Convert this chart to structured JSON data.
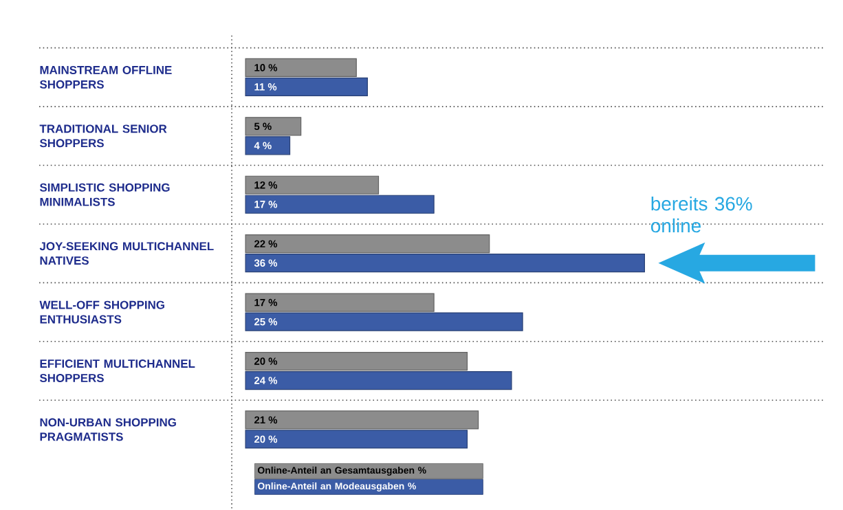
{
  "chart_data": {
    "type": "bar",
    "orientation": "horizontal",
    "categories": [
      "MAINSTREAM OFFLINE SHOPPERS",
      "TRADITIONAL SENIOR SHOPPERS",
      "SIMPLISTIC SHOPPING MINIMALISTS",
      "JOY-SEEKING MULTICHANNEL NATIVES",
      "WELL-OFF SHOPPING ENTHUSIASTS",
      "EFFICIENT MULTICHANNEL SHOPPERS",
      "NON-URBAN SHOPPING PRAGMATISTS"
    ],
    "series": [
      {
        "name": "Online-Anteil an Gesamtausgaben %",
        "color": "#8c8c8c",
        "values": [
          10,
          5,
          12,
          22,
          17,
          20,
          21
        ],
        "value_labels": [
          "10 %",
          "5 %",
          "12 %",
          "22 %",
          "17 %",
          "20 %",
          "21 %"
        ]
      },
      {
        "name": "Online-Anteil an Modeausgaben %",
        "color": "#3b5ca6",
        "values": [
          11,
          4,
          17,
          36,
          25,
          24,
          20
        ],
        "value_labels": [
          "11 %",
          "4 %",
          "17 %",
          "36 %",
          "25 %",
          "24 %",
          "20 %"
        ]
      }
    ],
    "legend": "bottom",
    "annotations": [
      {
        "text": "bereits 36% online",
        "x": 36,
        "y": "JOY-SEEKING MULTICHANNEL NATIVES"
      }
    ]
  }
}
